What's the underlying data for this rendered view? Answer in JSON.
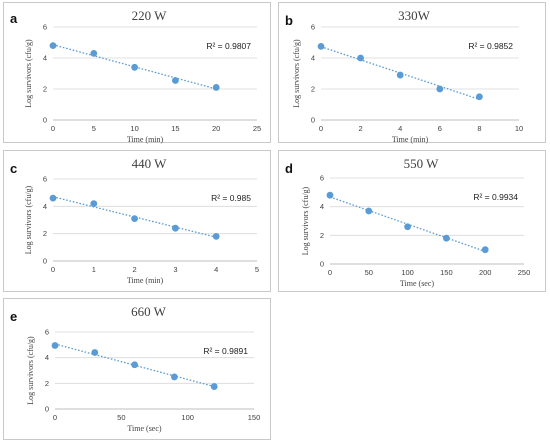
{
  "chart_data": [
    {
      "panel": "a",
      "type": "scatter",
      "title": "220 W",
      "xlabel": "Time (min)",
      "ylabel": "Log survivors (cfu/g)",
      "xlim": [
        0,
        25
      ],
      "ylim": [
        0,
        6
      ],
      "xticks": [
        0,
        5,
        10,
        15,
        20,
        25
      ],
      "yticks": [
        0,
        2,
        4,
        6
      ],
      "x": [
        0,
        5,
        10,
        15,
        20
      ],
      "y": [
        4.8,
        4.3,
        3.4,
        2.55,
        2.1
      ],
      "trendline": true,
      "r2_text": "R² = 0.9807",
      "grid": true,
      "marker_color": "#5b9bd5",
      "trendline_color": "#5b9bd5"
    },
    {
      "panel": "b",
      "type": "scatter",
      "title": "330W",
      "xlabel": "Time (min)",
      "ylabel": "Log survivors (cfu/g)",
      "xlim": [
        0,
        10
      ],
      "ylim": [
        0,
        6
      ],
      "xticks": [
        0,
        2,
        4,
        6,
        8,
        10
      ],
      "yticks": [
        0,
        2,
        4,
        6
      ],
      "x": [
        0,
        2,
        4,
        6,
        8
      ],
      "y": [
        4.75,
        4.0,
        2.9,
        2.0,
        1.5
      ],
      "trendline": true,
      "r2_text": "R² = 0.9852",
      "grid": true,
      "marker_color": "#5b9bd5",
      "trendline_color": "#5b9bd5"
    },
    {
      "panel": "c",
      "type": "scatter",
      "title": "440 W",
      "xlabel": "Time (min)",
      "ylabel": "Log survivors (cfu/g)",
      "xlim": [
        0,
        5
      ],
      "ylim": [
        0,
        6
      ],
      "xticks": [
        0,
        1,
        2,
        3,
        4,
        5
      ],
      "yticks": [
        0,
        2,
        4,
        6
      ],
      "x": [
        0,
        1,
        2,
        3,
        4
      ],
      "y": [
        4.6,
        4.2,
        3.1,
        2.4,
        1.8
      ],
      "trendline": true,
      "r2_text": "R² = 0.985",
      "grid": true,
      "marker_color": "#5b9bd5",
      "trendline_color": "#5b9bd5"
    },
    {
      "panel": "d",
      "type": "scatter",
      "title": "550 W",
      "xlabel": "Time (sec)",
      "ylabel": "Log survivors (cfu/g)",
      "xlim": [
        0,
        250
      ],
      "ylim": [
        0,
        6
      ],
      "xticks": [
        0,
        50,
        100,
        150,
        200,
        250
      ],
      "yticks": [
        0,
        2,
        4,
        6
      ],
      "x": [
        0,
        50,
        100,
        150,
        200
      ],
      "y": [
        4.8,
        3.7,
        2.6,
        1.8,
        1.0
      ],
      "trendline": true,
      "r2_text": "R² = 0.9934",
      "grid": true,
      "marker_color": "#5b9bd5",
      "trendline_color": "#5b9bd5"
    },
    {
      "panel": "e",
      "type": "scatter",
      "title": "660 W",
      "xlabel": "Time (sec)",
      "ylabel": "Log survivors (cfu/g)",
      "xlim": [
        0,
        150
      ],
      "ylim": [
        0,
        6
      ],
      "xticks": [
        0,
        50,
        100,
        150
      ],
      "yticks": [
        0,
        2,
        4,
        6
      ],
      "x": [
        0,
        30,
        60,
        90,
        120
      ],
      "y": [
        4.95,
        4.4,
        3.45,
        2.5,
        1.75
      ],
      "trendline": true,
      "r2_text": "R² = 0.9891",
      "grid": true,
      "marker_color": "#5b9bd5",
      "trendline_color": "#5b9bd5"
    }
  ]
}
